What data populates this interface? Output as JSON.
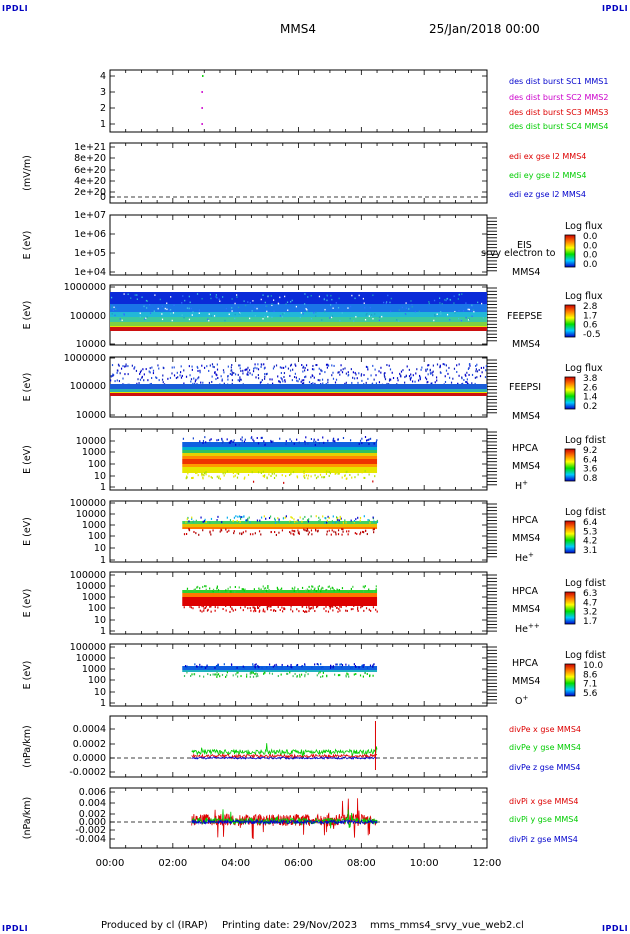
{
  "header": {
    "corner_tl": "IPDLI",
    "corner_tr": "IPDLI",
    "corner_bl": "IPDLI",
    "corner_br": "IPDLI",
    "spacecraft": "MMS4",
    "date": "25/Jan/2018 00:00"
  },
  "footer": {
    "producer": "Produced by cl (IRAP)",
    "printing": "Printing date: 29/Nov/2023",
    "script": "mms_mms4_srvy_vue_web2.cl"
  },
  "colors": {
    "blue": "#0000cc",
    "magenta": "#cc00cc",
    "red": "#dd0000",
    "green": "#00cc00",
    "orange": "#ff8800",
    "yellow": "#e6e600",
    "cyan": "#00b4d0"
  },
  "chart_data": {
    "type": "line",
    "x_axis": {
      "ticks": [
        "00:00",
        "02:00",
        "04:00",
        "06:00",
        "08:00",
        "10:00",
        "12:00"
      ],
      "range_hours": [
        0,
        12
      ]
    },
    "panels": [
      {
        "id": "burst",
        "type": "scatter",
        "ylim": [
          0.5,
          4.5
        ],
        "yticks": [
          "4",
          "3",
          "2",
          "1"
        ],
        "legend": [
          {
            "text": "des dist burst SC1 MMS1",
            "color": "blue"
          },
          {
            "text": "des dist burst SC2 MMS2",
            "color": "magenta"
          },
          {
            "text": "des dist burst SC3 MMS3",
            "color": "red"
          },
          {
            "text": "des dist burst SC4 MMS4",
            "color": "green"
          }
        ],
        "points": [
          {
            "t": 2.95,
            "y": 4,
            "color": "green"
          },
          {
            "t": 2.93,
            "y": 3,
            "color": "magenta"
          },
          {
            "t": 2.93,
            "y": 2,
            "color": "magenta"
          },
          {
            "t": 2.93,
            "y": 1,
            "color": "magenta"
          }
        ]
      },
      {
        "id": "edi",
        "type": "line",
        "ylabel": "(mV/m)",
        "ylim": [
          0,
          1e+21
        ],
        "yticks": [
          "1e+21",
          "8e+20",
          "6e+20",
          "4e+20",
          "2e+20",
          "0"
        ],
        "legend": [
          {
            "text": "edi ex gse l2 MMS4",
            "color": "red"
          },
          {
            "text": "edi ey gse l2 MMS4",
            "color": "green"
          },
          {
            "text": "edi ez gse l2 MMS4",
            "color": "blue"
          }
        ]
      },
      {
        "id": "eis",
        "type": "heatmap",
        "ylabel": "E (eV)",
        "yscale": "log",
        "yticks": [
          "1e+07",
          "1e+06",
          "1e+05",
          "1e+04"
        ],
        "instrument": "EIS",
        "instrument2": "MMS4",
        "overlay": "srvy electron to",
        "colorbar_title": "Log flux",
        "colorbar_ticks": [
          "0.0",
          "0.0",
          "0.0",
          "0.0"
        ]
      },
      {
        "id": "feepse",
        "type": "heatmap",
        "ylabel": "E (eV)",
        "yscale": "log",
        "yticks": [
          "1000000",
          "100000",
          "10000"
        ],
        "instrument": "FEEPSE",
        "instrument2": "MMS4",
        "time_range_hours": [
          0,
          12
        ],
        "colorbar_title": "Log flux",
        "colorbar_ticks": [
          "2.8",
          "1.7",
          "0.6",
          "-0.5"
        ]
      },
      {
        "id": "feepsi",
        "type": "heatmap",
        "ylabel": "E (eV)",
        "yscale": "log",
        "yticks": [
          "1000000",
          "100000",
          "10000"
        ],
        "instrument": "FEEPSI",
        "instrument2": "MMS4",
        "time_range_hours": [
          0,
          12
        ],
        "colorbar_title": "Log flux",
        "colorbar_ticks": [
          "3.8",
          "2.6",
          "1.4",
          "0.2"
        ]
      },
      {
        "id": "hpca_h",
        "type": "heatmap",
        "ylabel": "E (eV)",
        "yscale": "log",
        "yticks": [
          "10000",
          "1000",
          "100",
          "10",
          "1"
        ],
        "instrument": "HPCA",
        "instrument2": "MMS4",
        "species": "H",
        "charge": "+",
        "time_range_hours": [
          2.3,
          8.5
        ],
        "colorbar_title": "Log fdist",
        "colorbar_ticks": [
          "9.2",
          "6.4",
          "3.6",
          "0.8"
        ]
      },
      {
        "id": "hpca_he1",
        "type": "heatmap",
        "ylabel": "E (eV)",
        "yscale": "log",
        "yticks": [
          "100000",
          "10000",
          "1000",
          "100",
          "10",
          "1"
        ],
        "instrument": "HPCA",
        "instrument2": "MMS4",
        "species": "He",
        "charge": "+",
        "time_range_hours": [
          2.3,
          8.5
        ],
        "colorbar_title": "Log fdist",
        "colorbar_ticks": [
          "6.4",
          "5.3",
          "4.2",
          "3.1"
        ]
      },
      {
        "id": "hpca_he2",
        "type": "heatmap",
        "ylabel": "E (eV)",
        "yscale": "log",
        "yticks": [
          "100000",
          "10000",
          "1000",
          "100",
          "10",
          "1"
        ],
        "instrument": "HPCA",
        "instrument2": "MMS4",
        "species": "He",
        "charge": "++",
        "time_range_hours": [
          2.3,
          8.5
        ],
        "colorbar_title": "Log fdist",
        "colorbar_ticks": [
          "6.3",
          "4.7",
          "3.2",
          "1.7"
        ]
      },
      {
        "id": "hpca_o",
        "type": "heatmap",
        "ylabel": "E (eV)",
        "yscale": "log",
        "yticks": [
          "100000",
          "10000",
          "1000",
          "100",
          "10",
          "1"
        ],
        "instrument": "HPCA",
        "instrument2": "MMS4",
        "species": "O",
        "charge": "+",
        "time_range_hours": [
          2.3,
          8.5
        ],
        "colorbar_title": "Log fdist",
        "colorbar_ticks": [
          "10.0",
          "8.6",
          "7.1",
          "5.6"
        ]
      },
      {
        "id": "divpe",
        "type": "line",
        "ylabel": "(nPa/km)",
        "ylim": [
          -0.0003,
          0.0005
        ],
        "yticks": [
          "0.0004",
          "0.0002",
          "0.0000",
          "-0.0002"
        ],
        "time_range_hours": [
          2.6,
          8.5
        ],
        "legend": [
          {
            "text": "divPe x gse MMS4",
            "color": "red"
          },
          {
            "text": "divPe y gse MMS4",
            "color": "green"
          },
          {
            "text": "divPe z gse MMS4",
            "color": "blue"
          }
        ]
      },
      {
        "id": "divpi",
        "type": "line",
        "ylabel": "(nPa/km)",
        "ylim": [
          -0.006,
          0.007
        ],
        "yticks": [
          "0.006",
          "0.004",
          "0.002",
          "0.000",
          "-0.002",
          "-0.004"
        ],
        "time_range_hours": [
          2.6,
          8.5
        ],
        "legend": [
          {
            "text": "divPi x gse MMS4",
            "color": "red"
          },
          {
            "text": "divPi y gse MMS4",
            "color": "green"
          },
          {
            "text": "divPi z gse MMS4",
            "color": "blue"
          }
        ]
      }
    ]
  }
}
